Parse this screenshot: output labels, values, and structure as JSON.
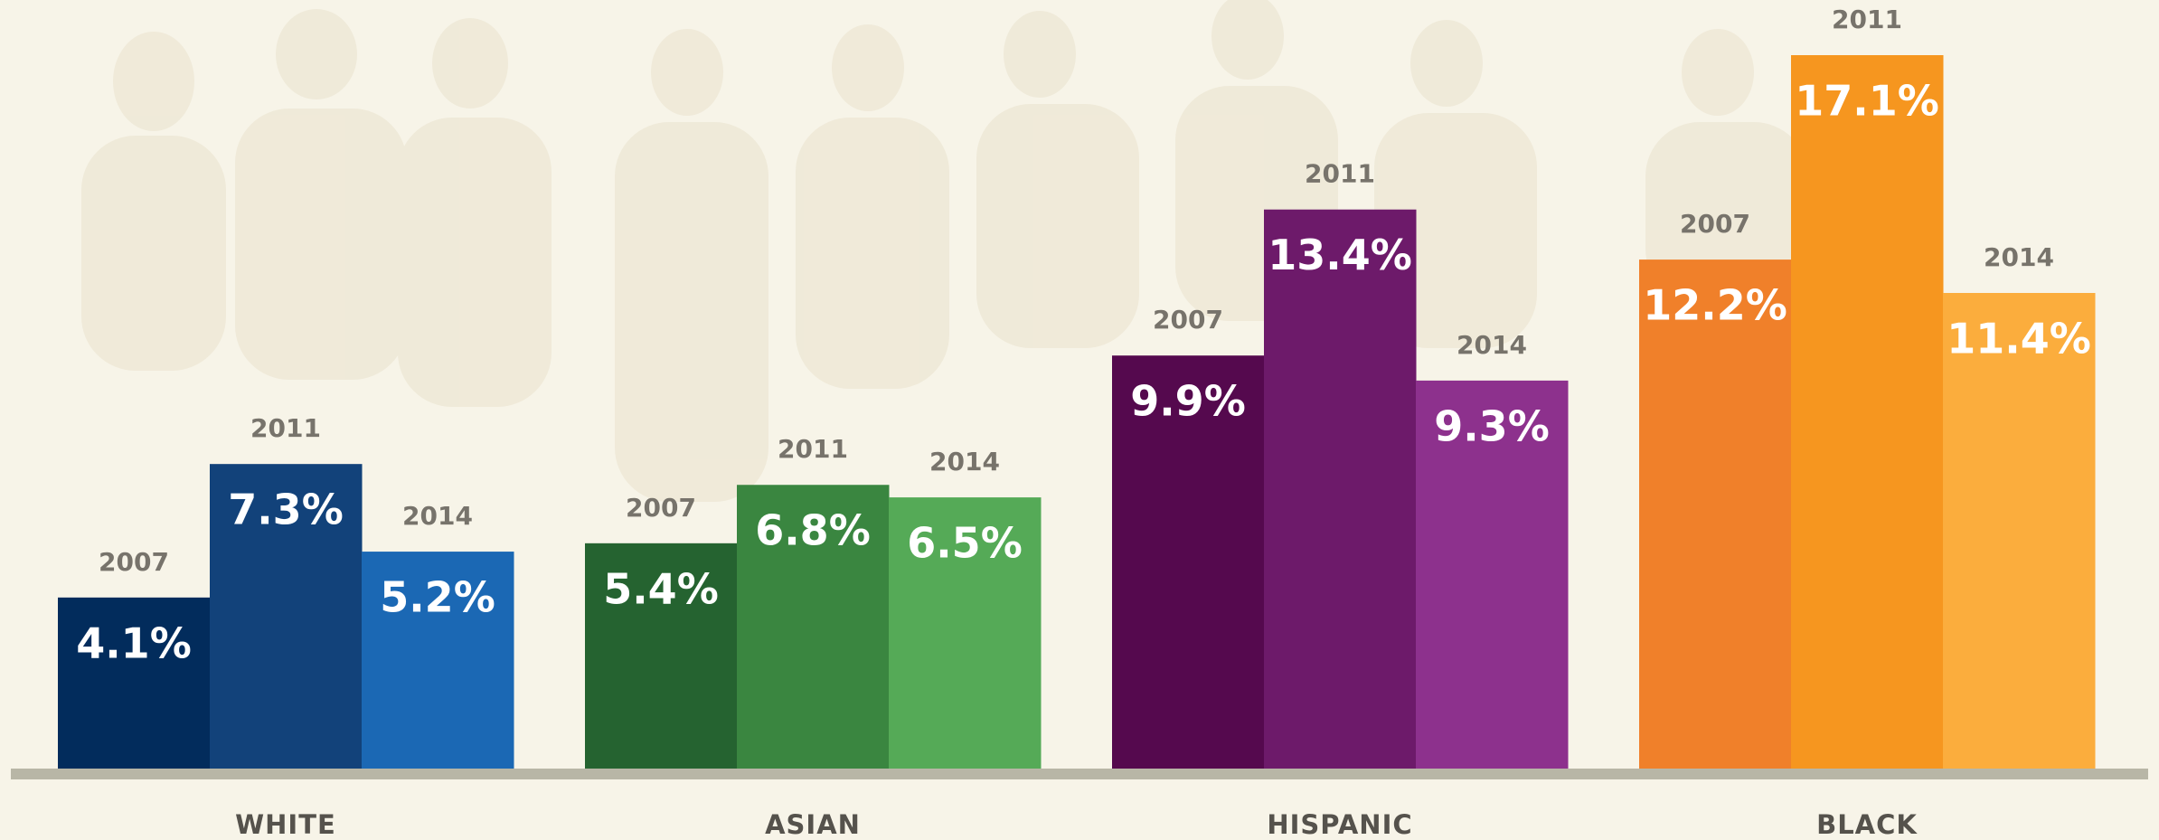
{
  "chart_data": {
    "type": "bar",
    "categories": [
      "WHITE",
      "ASIAN",
      "HISPANIC",
      "BLACK"
    ],
    "series": [
      {
        "name": "2007",
        "colors": [
          "#022c5c",
          "#256330",
          "#55094e",
          "#f0802a"
        ],
        "values": [
          4.1,
          5.4,
          9.9,
          12.2
        ],
        "value_labels": [
          "4.1%",
          "5.4%",
          "9.9%",
          "12.2%"
        ]
      },
      {
        "name": "2011",
        "colors": [
          "#12427a",
          "#3a8640",
          "#6d1a6a",
          "#f6961f"
        ],
        "values": [
          7.3,
          6.8,
          13.4,
          17.1
        ],
        "value_labels": [
          "7.3%",
          "6.8%",
          "13.4%",
          "17.1%"
        ]
      },
      {
        "name": "2014",
        "colors": [
          "#1b68b4",
          "#55aa57",
          "#8d318d",
          "#fbad3d"
        ],
        "values": [
          5.2,
          6.5,
          9.3,
          11.4
        ],
        "value_labels": [
          "5.2%",
          "6.5%",
          "9.3%",
          "11.4%"
        ]
      }
    ]
  }
}
